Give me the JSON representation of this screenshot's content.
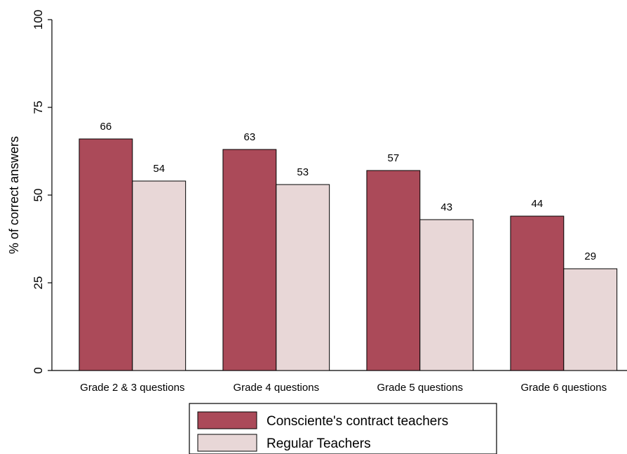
{
  "chart_data": {
    "type": "bar",
    "title": "",
    "xlabel": "",
    "ylabel": "% of correct answers",
    "ylim": [
      0,
      100
    ],
    "yticks": [
      0,
      25,
      50,
      75,
      100
    ],
    "categories": [
      "Grade 2 & 3 questions",
      "Grade 4 questions",
      "Grade 5 questions",
      "Grade 6 questions"
    ],
    "series": [
      {
        "name": "Consciente's contract teachers",
        "values": [
          66,
          63,
          57,
          44
        ],
        "labels": [
          "66",
          "63",
          "57",
          "44"
        ],
        "color": "#ab4a59"
      },
      {
        "name": "Regular Teachers",
        "values": [
          54,
          53,
          43,
          29
        ],
        "labels": [
          "54",
          "53",
          "43",
          "29"
        ],
        "color": "#e8d7d7"
      }
    ],
    "grid": false,
    "legend_position": "bottom"
  }
}
